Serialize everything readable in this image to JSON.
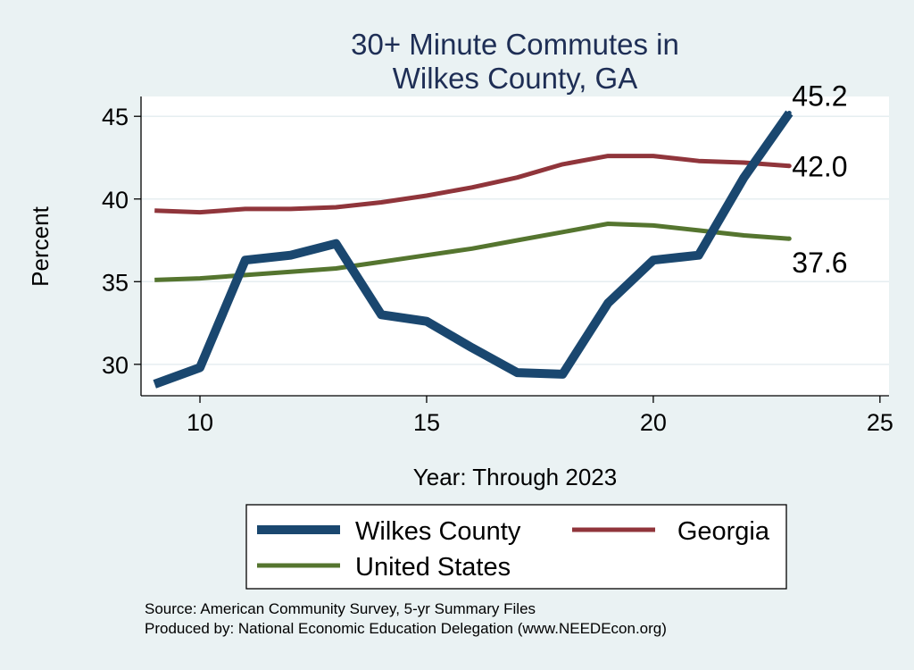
{
  "chart_data": {
    "type": "line",
    "title": [
      "30+ Minute Commutes in",
      "Wilkes County, GA"
    ],
    "xlabel": "Year: Through 2023",
    "ylabel": "Percent",
    "xlim": [
      8.7,
      25.2
    ],
    "ylim": [
      28.1,
      46.2
    ],
    "xticks": [
      10,
      15,
      20,
      25
    ],
    "yticks": [
      30,
      35,
      40,
      45
    ],
    "grid": true,
    "legend_position": "bottom",
    "x": [
      9,
      10,
      11,
      12,
      13,
      14,
      15,
      16,
      17,
      18,
      19,
      20,
      21,
      22,
      23
    ],
    "series": [
      {
        "name": "Wilkes County",
        "color": "#1a476f",
        "values": [
          28.8,
          29.8,
          36.3,
          36.6,
          37.3,
          33.0,
          32.6,
          31.0,
          29.5,
          29.4,
          33.7,
          36.3,
          36.6,
          41.3,
          45.2
        ],
        "end_label": "45.2"
      },
      {
        "name": "Georgia",
        "color": "#90353b",
        "values": [
          39.3,
          39.2,
          39.4,
          39.4,
          39.5,
          39.8,
          40.2,
          40.7,
          41.3,
          42.1,
          42.6,
          42.6,
          42.3,
          42.2,
          42.0
        ],
        "end_label": "42.0"
      },
      {
        "name": "United States",
        "color": "#55752f",
        "values": [
          35.1,
          35.2,
          35.4,
          35.6,
          35.8,
          36.2,
          36.6,
          37.0,
          37.5,
          38.0,
          38.5,
          38.4,
          38.1,
          37.8,
          37.6
        ],
        "end_label": "37.6"
      }
    ]
  },
  "notes": {
    "source": "Source: American Community Survey, 5-yr Summary Files",
    "produced_by": "Produced by: National Economic Education Delegation (www.NEEDEcon.org)"
  }
}
